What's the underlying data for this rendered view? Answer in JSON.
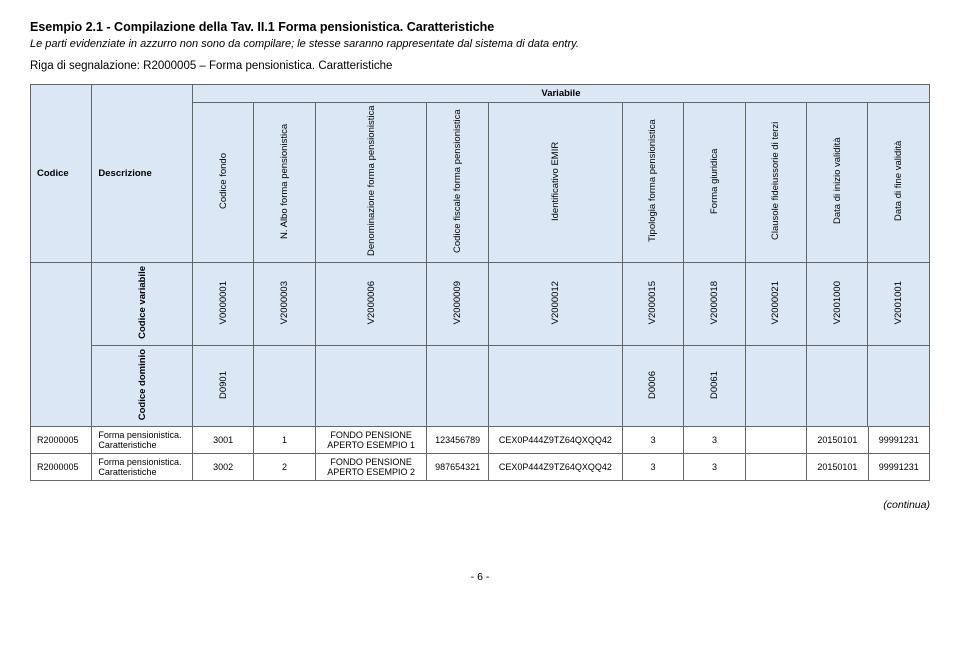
{
  "header": {
    "title": "Esempio 2.1 - Compilazione della Tav. II.1 Forma pensionistica. Caratteristiche",
    "subtitle": "Le parti evidenziate in azzurro non sono da compilare; le stesse saranno rappresentate dal sistema di data entry.",
    "riga": "Riga di segnalazione: R2000005 – Forma pensionistica. Caratteristiche"
  },
  "table": {
    "variabile_label": "Variabile",
    "codice_label": "Codice",
    "descrizione_label": "Descrizione",
    "col_headers": [
      "Codice fondo",
      "N. Albo forma pensionistica",
      "Denominazione forma pensionistica",
      "Codice fiscale forma pensionistica",
      "Identificativo EMIR",
      "Tipologia forma pensionistica",
      "Forma giuridica",
      "Clausole fideiussorie di terzi",
      "Data di inizio validità",
      "Data di fine validità"
    ],
    "codice_variabile_label": "Codice variabile",
    "codice_variabile": [
      "V0000001",
      "V2000003",
      "V2000006",
      "V2000009",
      "V2000012",
      "V2000015",
      "V2000018",
      "V2000021",
      "V2001000",
      "V2001001"
    ],
    "codice_dominio_label": "Codice dominio",
    "codice_dominio": [
      "D0901",
      "",
      "",
      "",
      "",
      "D0006",
      "D0061",
      "",
      "",
      ""
    ],
    "rows": [
      {
        "codice": "R2000005",
        "desc": "Forma pensionistica. Caratteristiche",
        "v": [
          "3001",
          "1",
          "FONDO PENSIONE APERTO ESEMPIO 1",
          "123456789",
          "CEX0P444Z9TZ64QXQQ42",
          "3",
          "3",
          "",
          "20150101",
          "99991231"
        ]
      },
      {
        "codice": "R2000005",
        "desc": "Forma pensionistica. Caratteristiche",
        "v": [
          "3002",
          "2",
          "FONDO PENSIONE APERTO ESEMPIO 2",
          "987654321",
          "CEX0P444Z9TZ64QXQQ42",
          "3",
          "3",
          "",
          "20150101",
          "99991231"
        ]
      }
    ]
  },
  "footer": {
    "continua": "(continua)",
    "page": "- 6 -"
  },
  "colors": {
    "header_bg": "#dbe7f5",
    "border": "#666666",
    "text": "#000000"
  }
}
